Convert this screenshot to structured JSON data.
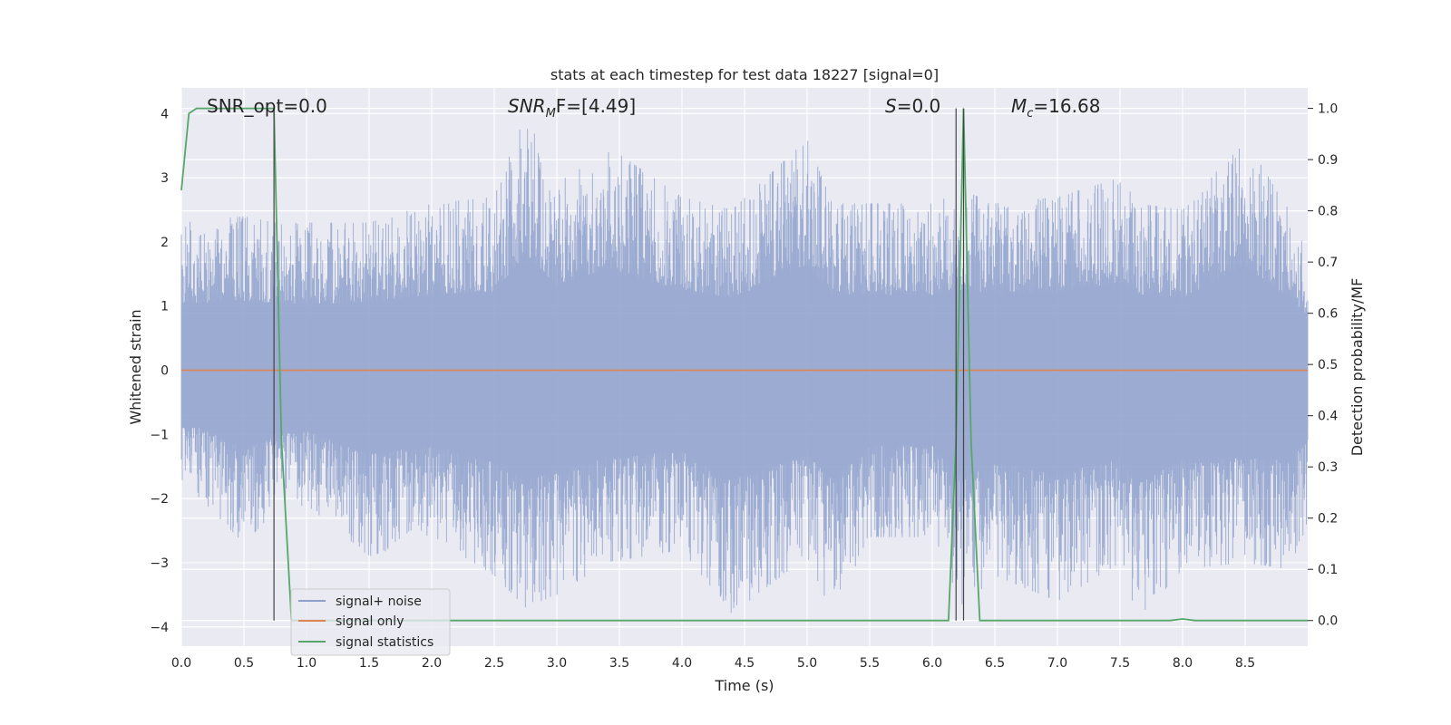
{
  "chart_data": {
    "type": "line",
    "title": "stats at each timestep for test data 18227 [signal=0]",
    "xlabel": "Time (s)",
    "ylabel_left": "Whitened strain",
    "ylabel_right": "Detection probability/MF",
    "xlim": [
      0.0,
      9.0
    ],
    "ylim_left": [
      -4.3,
      4.4
    ],
    "ylim_right": [
      -0.05,
      1.04
    ],
    "x_ticks": [
      "0.0",
      "0.5",
      "1.0",
      "1.5",
      "2.0",
      "2.5",
      "3.0",
      "3.5",
      "4.0",
      "4.5",
      "5.0",
      "5.5",
      "6.0",
      "6.5",
      "7.0",
      "7.5",
      "8.0",
      "8.5"
    ],
    "y_left_ticks": [
      "−4",
      "−3",
      "−2",
      "−1",
      "0",
      "1",
      "2",
      "3",
      "4"
    ],
    "y_right_ticks": [
      "0.0",
      "0.1",
      "0.2",
      "0.3",
      "0.4",
      "0.5",
      "0.6",
      "0.7",
      "0.8",
      "0.9",
      "1.0"
    ],
    "grid": true,
    "legend_placement": "lower-left",
    "annotations": {
      "snr_opt": "SNR_opt=0.0",
      "snr_mf_base": "SNR",
      "snr_mf_sub": "M",
      "snr_mf_tail": "F=[4.49]",
      "s_italic": "S",
      "s_value": "=0.0",
      "mc_base": "M",
      "mc_sub": "c",
      "mc_value": "=16.68"
    },
    "series": [
      {
        "name": "signal+ noise",
        "axis": "left",
        "color": "#8da0cb",
        "description_values": "dense whitened noise envelope, approx range -3.9 to 4.0",
        "envelope": {
          "x": [
            0.0,
            0.5,
            0.75,
            1.0,
            1.5,
            2.0,
            2.5,
            2.75,
            3.0,
            3.4,
            4.0,
            4.4,
            5.0,
            5.2,
            5.5,
            6.0,
            6.25,
            6.5,
            7.0,
            7.5,
            7.65,
            8.0,
            8.5,
            8.85,
            9.0
          ],
          "upper": [
            2.3,
            2.4,
            2.3,
            2.3,
            2.3,
            2.6,
            2.7,
            4.0,
            2.9,
            3.5,
            2.7,
            2.5,
            3.6,
            2.6,
            2.6,
            2.6,
            2.8,
            2.6,
            2.7,
            3.0,
            2.6,
            2.5,
            3.6,
            2.5,
            1.9
          ],
          "lower": [
            -1.7,
            -2.7,
            -2.2,
            -2.1,
            -2.9,
            -2.6,
            -3.2,
            -3.7,
            -3.5,
            -3.0,
            -2.8,
            -3.8,
            -2.9,
            -3.8,
            -2.6,
            -2.6,
            -3.7,
            -3.2,
            -3.6,
            -3.0,
            -3.9,
            -3.1,
            -3.0,
            -3.1,
            -2.4
          ]
        }
      },
      {
        "name": "signal only",
        "axis": "left",
        "color": "#dd8452",
        "x": [
          0.0,
          9.0
        ],
        "values": [
          0.0,
          0.0
        ]
      },
      {
        "name": "signal statistics",
        "axis": "right",
        "color": "#55a868",
        "x": [
          0.0,
          0.06,
          0.12,
          0.7,
          0.74,
          0.8,
          0.88,
          1.0,
          6.13,
          6.19,
          6.25,
          6.31,
          6.38,
          7.9,
          8.0,
          8.1,
          9.0
        ],
        "values": [
          0.84,
          0.99,
          1.0,
          1.0,
          1.0,
          0.35,
          0.0,
          0.0,
          0.0,
          0.35,
          1.0,
          0.35,
          0.0,
          0.0,
          0.003,
          0.0,
          0.0
        ]
      }
    ],
    "vertical_markers": [
      0.74,
      6.19,
      6.25
    ]
  }
}
